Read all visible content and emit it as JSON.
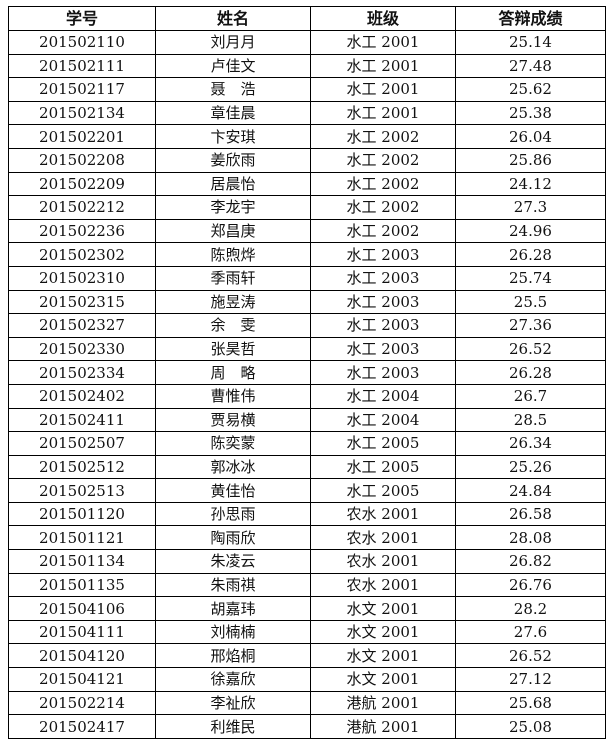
{
  "table": {
    "headers": [
      "学号",
      "姓名",
      "班级",
      "答辩成绩"
    ],
    "rows": [
      [
        "201502110",
        "刘月月",
        "水工 2001",
        "25.14"
      ],
      [
        "201502111",
        "卢佳文",
        "水工 2001",
        "27.48"
      ],
      [
        "201502117",
        "聂　浩",
        "水工 2001",
        "25.62"
      ],
      [
        "201502134",
        "章佳晨",
        "水工 2001",
        "25.38"
      ],
      [
        "201502201",
        "卞安琪",
        "水工 2002",
        "26.04"
      ],
      [
        "201502208",
        "姜欣雨",
        "水工 2002",
        "25.86"
      ],
      [
        "201502209",
        "居晨怡",
        "水工 2002",
        "24.12"
      ],
      [
        "201502212",
        "李龙宇",
        "水工 2002",
        "27.3"
      ],
      [
        "201502236",
        "郑昌庚",
        "水工 2002",
        "24.96"
      ],
      [
        "201502302",
        "陈煦烨",
        "水工 2003",
        "26.28"
      ],
      [
        "201502310",
        "季雨轩",
        "水工 2003",
        "25.74"
      ],
      [
        "201502315",
        "施昱涛",
        "水工 2003",
        "25.5"
      ],
      [
        "201502327",
        "余　雯",
        "水工 2003",
        "27.36"
      ],
      [
        "201502330",
        "张昊哲",
        "水工 2003",
        "26.52"
      ],
      [
        "201502334",
        "周　略",
        "水工 2003",
        "26.28"
      ],
      [
        "201502402",
        "曹惟伟",
        "水工 2004",
        "26.7"
      ],
      [
        "201502411",
        "贾易横",
        "水工 2004",
        "28.5"
      ],
      [
        "201502507",
        "陈奕蒙",
        "水工 2005",
        "26.34"
      ],
      [
        "201502512",
        "郭冰冰",
        "水工 2005",
        "25.26"
      ],
      [
        "201502513",
        "黄佳怡",
        "水工 2005",
        "24.84"
      ],
      [
        "201501120",
        "孙思雨",
        "农水 2001",
        "26.58"
      ],
      [
        "201501121",
        "陶雨欣",
        "农水 2001",
        "28.08"
      ],
      [
        "201501134",
        "朱凌云",
        "农水 2001",
        "26.82"
      ],
      [
        "201501135",
        "朱雨祺",
        "农水 2001",
        "26.76"
      ],
      [
        "201504106",
        "胡嘉玮",
        "水文 2001",
        "28.2"
      ],
      [
        "201504111",
        "刘楠楠",
        "水文 2001",
        "27.6"
      ],
      [
        "201504120",
        "邢焰桐",
        "水文 2001",
        "26.52"
      ],
      [
        "201504121",
        "徐嘉欣",
        "水文 2001",
        "27.12"
      ],
      [
        "201502214",
        "李祉欣",
        "港航 2001",
        "25.68"
      ],
      [
        "201502417",
        "利维民",
        "港航 2001",
        "25.08"
      ]
    ]
  }
}
